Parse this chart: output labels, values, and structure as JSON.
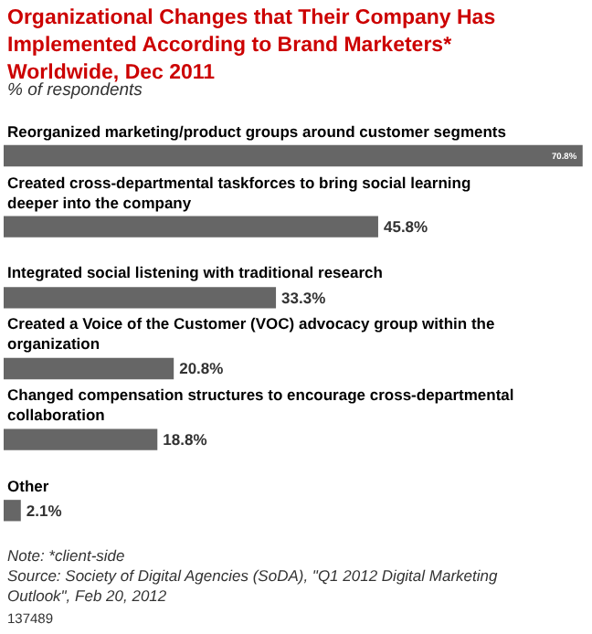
{
  "chart_data": {
    "type": "bar",
    "orientation": "horizontal",
    "title": "Organizational Changes that Their Company Has Implemented According to Brand Marketers* Worldwide, Dec 2011",
    "subtitle": "% of respondents",
    "categories": [
      "Reorganized marketing/product groups around customer segments",
      "Created cross-departmental taskforces to bring social learning deeper into the company",
      "Integrated social listening with traditional research",
      "Created a Voice of the Customer (VOC) advocacy group within the organization",
      "Changed compensation structures to encourage cross-departmental collaboration",
      "Other"
    ],
    "values": [
      70.8,
      45.8,
      33.3,
      20.8,
      18.8,
      2.1
    ],
    "value_labels": [
      "70.8%",
      "45.8%",
      "33.3%",
      "20.8%",
      "18.8%",
      "2.1%"
    ],
    "color": "#666666",
    "xlim": [
      0,
      71.5
    ],
    "annotations": [
      "Note: *client-side",
      "Source: Society of Digital Agencies (SoDA), \"Q1 2012 Digital Marketing Outlook\", Feb 20, 2012",
      "137489"
    ]
  }
}
